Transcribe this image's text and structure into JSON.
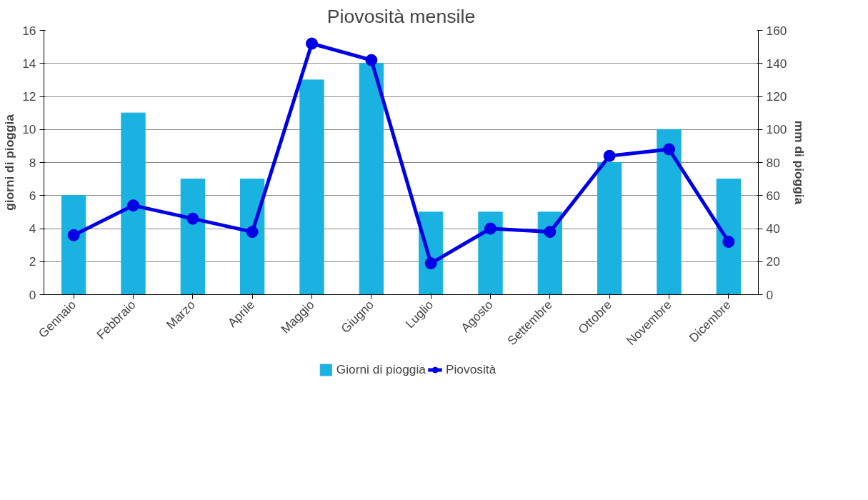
{
  "chart_data": {
    "type": "bar",
    "title": "Piovosità mensile",
    "ylabel": "giorni di pioggia",
    "y2label": "mm di pioggia",
    "categories": [
      "Gennaio",
      "Febbraio",
      "Marzo",
      "Aprile",
      "Maggio",
      "Giugno",
      "Luglio",
      "Agosto",
      "Settembre",
      "Ottobre",
      "Novembre",
      "Dicembre"
    ],
    "series": [
      {
        "name": "Giorni di pioggia",
        "color": "#1ab2e0",
        "values": [
          6,
          11,
          7,
          7,
          13,
          14,
          5,
          5,
          5,
          8,
          10,
          7
        ]
      },
      {
        "name": "Piovosità",
        "type": "line",
        "axis": "y2",
        "color": "#0000e6",
        "values": [
          36,
          54,
          46,
          38,
          152,
          142,
          19,
          40,
          38,
          84,
          88,
          32
        ]
      }
    ],
    "ylim": [
      0,
      16
    ],
    "yticks": [
      0,
      2,
      4,
      6,
      8,
      10,
      12,
      14,
      16
    ],
    "y2lim": [
      0,
      160
    ],
    "y2ticks": [
      0,
      20,
      40,
      60,
      80,
      100,
      120,
      140,
      160
    ],
    "grid": "y",
    "legend": "bottom",
    "marker": "circle"
  }
}
